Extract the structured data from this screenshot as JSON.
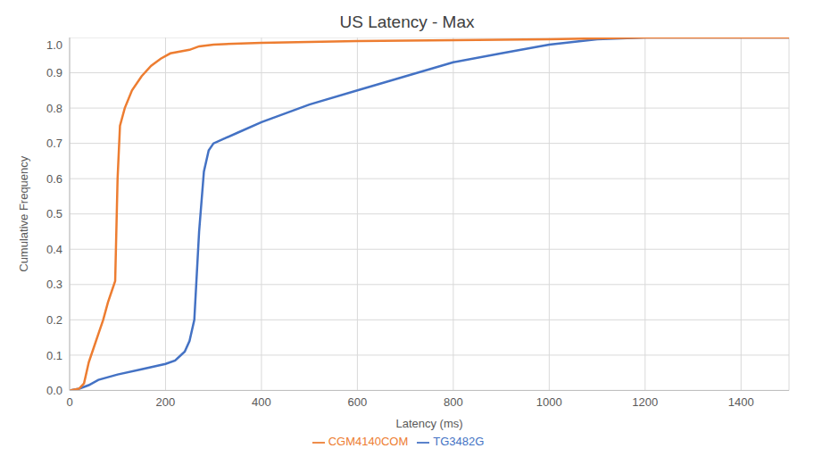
{
  "chart_data": {
    "type": "line",
    "title": "US Latency - Max",
    "x_label": "Latency (ms)",
    "y_label": "Cumulative Frequency",
    "xlim": [
      0,
      1500
    ],
    "xticks": [
      0,
      200,
      400,
      600,
      800,
      1000,
      1200,
      1400
    ],
    "ylim": [
      0,
      1
    ],
    "yticks": [
      {
        "value": 0,
        "label": "0.0"
      },
      0.1,
      0.2,
      0.3,
      0.4,
      0.5,
      0.6,
      0.7,
      0.8,
      0.9,
      {
        "value": 1,
        "label": "1.0"
      }
    ],
    "grid": true,
    "legend": "bottom",
    "series": [
      {
        "name": "TG3482G",
        "color": "#4472c4",
        "x": [
          0,
          20,
          40,
          60,
          100,
          150,
          200,
          220,
          240,
          250,
          260,
          270,
          280,
          290,
          300,
          350,
          400,
          500,
          600,
          700,
          800,
          900,
          1000,
          1100,
          1200,
          1500
        ],
        "values": [
          0,
          0.005,
          0.015,
          0.03,
          0.045,
          0.06,
          0.075,
          0.085,
          0.11,
          0.14,
          0.2,
          0.45,
          0.62,
          0.68,
          0.7,
          0.73,
          0.76,
          0.81,
          0.85,
          0.89,
          0.93,
          0.955,
          0.98,
          0.995,
          1,
          1
        ]
      },
      {
        "name": "CGM4140COM",
        "color": "#ed7d31",
        "x": [
          0,
          20,
          30,
          40,
          50,
          60,
          70,
          80,
          90,
          95,
          100,
          105,
          115,
          130,
          150,
          170,
          190,
          210,
          250,
          270,
          300,
          400,
          600,
          1000,
          1200,
          1500
        ],
        "values": [
          0,
          0.005,
          0.02,
          0.08,
          0.12,
          0.16,
          0.2,
          0.25,
          0.29,
          0.31,
          0.6,
          0.75,
          0.8,
          0.85,
          0.89,
          0.92,
          0.94,
          0.955,
          0.965,
          0.975,
          0.98,
          0.985,
          0.99,
          0.995,
          1,
          1
        ]
      }
    ]
  }
}
